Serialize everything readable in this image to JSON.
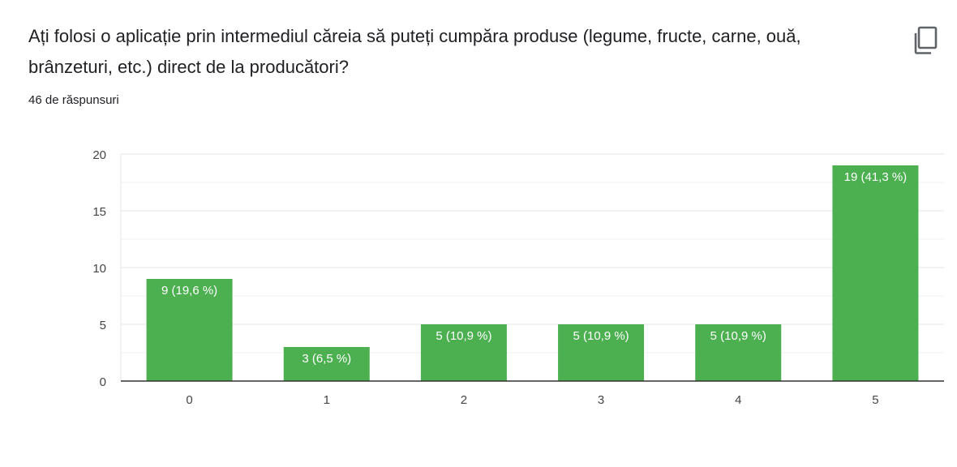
{
  "question": {
    "title": "Ați folosi o aplicație prin intermediul căreia să puteți cumpăra produse (legume, fructe, carne, ouă, brânzeturi, etc.) direct de la producători?",
    "responses": "46 de răspunsuri"
  },
  "icons": {
    "copy": "copy-icon"
  },
  "colors": {
    "bar": "#4caf50",
    "grid": "#e6e6e6",
    "axis": "#333333"
  },
  "chart_data": {
    "type": "bar",
    "categories": [
      "0",
      "1",
      "2",
      "3",
      "4",
      "5"
    ],
    "values": [
      9,
      3,
      5,
      5,
      5,
      19
    ],
    "data_labels": [
      "9 (19,6 %)",
      "3 (6,5 %)",
      "5 (10,9 %)",
      "5 (10,9 %)",
      "5 (10,9 %)",
      "19 (41,3 %)"
    ],
    "yticks": [
      0,
      5,
      10,
      15,
      20
    ],
    "ylim": [
      0,
      20
    ],
    "minor_gridlines": true,
    "legend": false
  }
}
